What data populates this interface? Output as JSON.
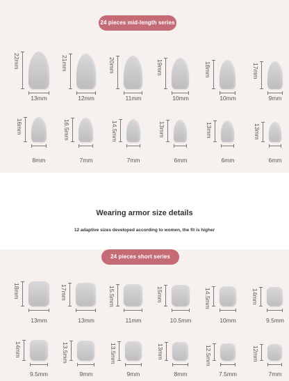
{
  "top_series": {
    "label": "24 pieces mid-length series",
    "rows": [
      [
        {
          "height": "22mm",
          "width": "13mm"
        },
        {
          "height": "21mm",
          "width": "12mm"
        },
        {
          "height": "20mm",
          "width": "11mm"
        },
        {
          "height": "19mm",
          "width": "10mm"
        },
        {
          "height": "18mm",
          "width": "10mm"
        },
        {
          "height": "17mm",
          "width": "9mm"
        }
      ],
      [
        {
          "height": "16mm",
          "width": "8mm"
        },
        {
          "height": "16.5mm",
          "width": "7mm"
        },
        {
          "height": "14.5mm",
          "width": "7mm"
        },
        {
          "height": "13mm",
          "width": "6mm"
        },
        {
          "height": "13mm",
          "width": "6mm"
        },
        {
          "height": "13mm",
          "width": "6mm"
        }
      ]
    ]
  },
  "info": {
    "heading": "Wearing armor size details",
    "subheading": "12 adaptive sizes developed according to women, the fit is higher"
  },
  "bottom_series": {
    "label": "24 pieces short series",
    "rows": [
      [
        {
          "height": "18mm",
          "width": "13mm"
        },
        {
          "height": "17mm",
          "width": "13mm"
        },
        {
          "height": "15.5mm",
          "width": "11mm"
        },
        {
          "height": "15mm",
          "width": "10.5mm"
        },
        {
          "height": "14.5mm",
          "width": "10mm"
        },
        {
          "height": "14mm",
          "width": "9.5mm"
        }
      ],
      [
        {
          "height": "14mm",
          "width": "9.5mm"
        },
        {
          "height": "13.5mm",
          "width": "9mm"
        },
        {
          "height": "13.5mm",
          "width": "9mm"
        },
        {
          "height": "13mm",
          "width": "8mm"
        },
        {
          "height": "12.5mm",
          "width": "7.5mm"
        },
        {
          "height": "12mm",
          "width": "7mm"
        }
      ]
    ]
  }
}
